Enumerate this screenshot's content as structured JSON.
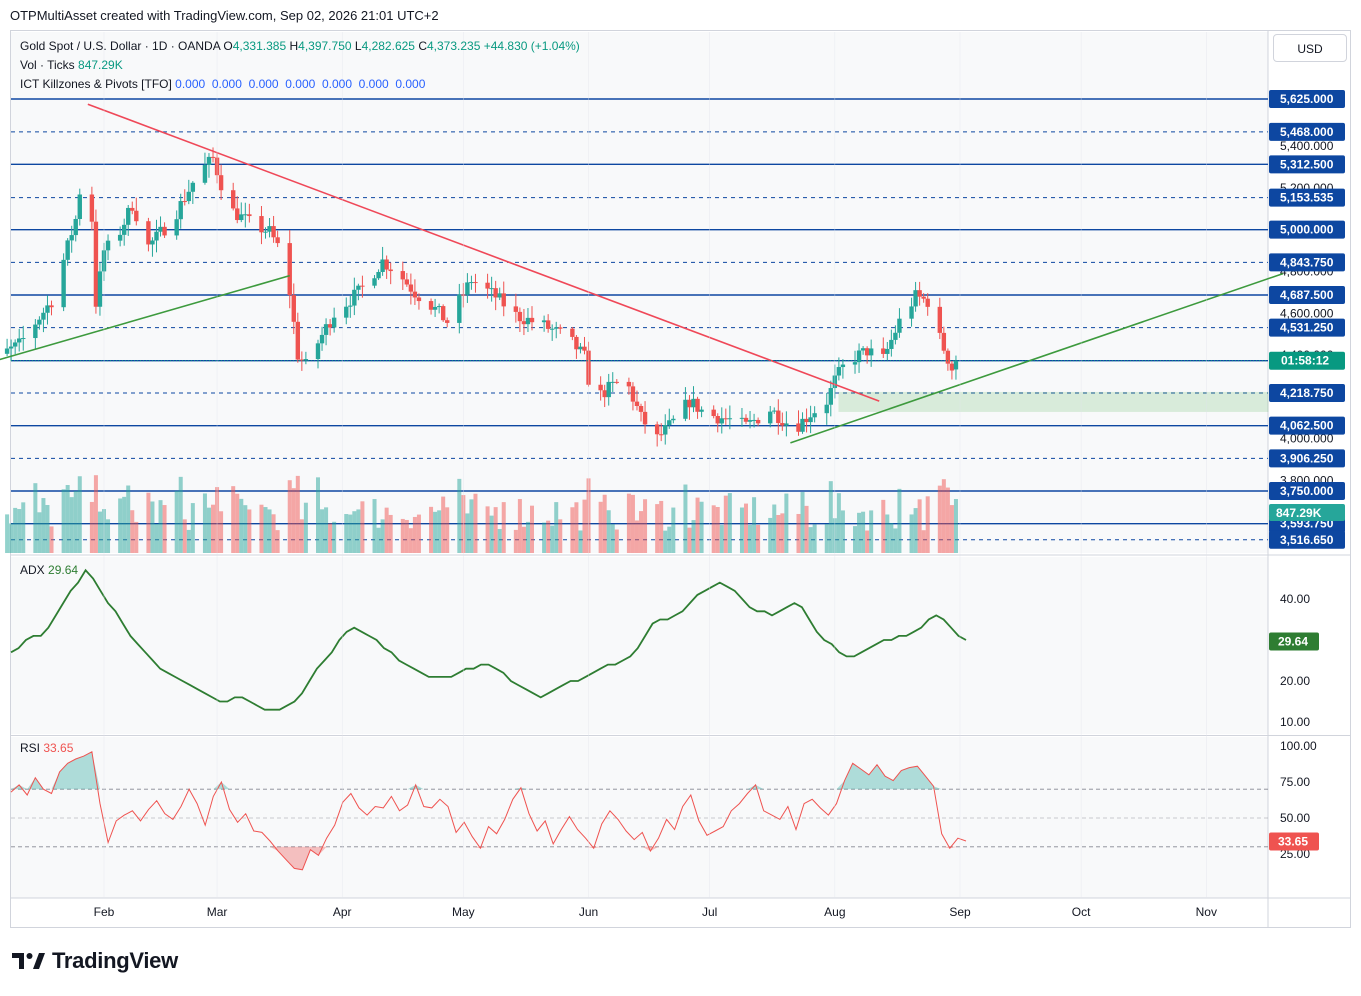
{
  "watermark": {
    "text": "OTPMultiAsset created with TradingView.com, Sep 02, 2026 21:01 UTC+2"
  },
  "currency_button": "USD",
  "legend": {
    "symbol": "Gold Spot / U.S. Dollar · 1D · OANDA",
    "o_label": "O",
    "o": "4,331.385",
    "h_label": "H",
    "h": "4,397.750",
    "l_label": "L",
    "l": "4,282.625",
    "c_label": "C",
    "c": "4,373.235",
    "change": "+44.830 (+1.04%)",
    "vol_label": "Vol · Ticks",
    "vol": "847.29K",
    "ict_label": "ICT Killzones & Pivots [TFO]",
    "ict_values": "0.000  0.000  0.000  0.000  0.000  0.000  0.000"
  },
  "adx_label": "ADX",
  "adx_value": "29.64",
  "rsi_label": "RSI",
  "rsi_value": "33.65",
  "countdown": "01:58:12",
  "volume_badge": "847.29K",
  "brand": "TradingView",
  "colors": {
    "up": "#26a69a",
    "down": "#ef5350",
    "level": "#0d47a1",
    "adx": "#2e7d32",
    "rsi": "#ef5350",
    "trend_down": "#ef4858",
    "trend_up": "#3d9a3d"
  },
  "chart_data": [
    {
      "type": "candlestick",
      "title": "Gold Spot / U.S. Dollar · 1D · OANDA",
      "ylim": [
        3440,
        5760
      ],
      "y_ticks": [
        "5,400.000",
        "5,200.000",
        "4,800.000",
        "4,600.000",
        "4,400.000",
        "4,000.000",
        "3,800.000"
      ],
      "x_ticks": [
        "Feb",
        "Mar",
        "Apr",
        "May",
        "Jun",
        "Jul",
        "Aug",
        "Sep",
        "Oct",
        "Nov"
      ],
      "levels": [
        {
          "price": 5625.0,
          "label": "5,625.000",
          "style": "solid"
        },
        {
          "price": 5468.0,
          "label": "5,468.000",
          "style": "dashed"
        },
        {
          "price": 5312.5,
          "label": "5,312.500",
          "style": "solid"
        },
        {
          "price": 5153.535,
          "label": "5,153.535",
          "style": "dashed"
        },
        {
          "price": 5000.0,
          "label": "5,000.000",
          "style": "solid"
        },
        {
          "price": 4843.75,
          "label": "4,843.750",
          "style": "dashed"
        },
        {
          "price": 4687.5,
          "label": "4,687.500",
          "style": "solid"
        },
        {
          "price": 4531.25,
          "label": "4,531.250",
          "style": "dashed"
        },
        {
          "price": 4373.235,
          "label": "",
          "style": "solid"
        },
        {
          "price": 4218.75,
          "label": "4,218.750",
          "style": "dashed"
        },
        {
          "price": 4062.5,
          "label": "4,062.500",
          "style": "solid"
        },
        {
          "price": 3906.25,
          "label": "3,906.250",
          "style": "dashed"
        },
        {
          "price": 3750.0,
          "label": "3,750.000",
          "style": "solid"
        },
        {
          "price": 3593.75,
          "label": "3,593.750",
          "style": "solid"
        },
        {
          "price": 3516.65,
          "label": "3,516.650",
          "style": "dashed"
        }
      ],
      "last_price": 4373.235,
      "candles": [],
      "trendlines": [
        {
          "from": [
            "Jan 28",
            5600
          ],
          "to": [
            "Aug 12",
            4180
          ],
          "color": "down"
        },
        {
          "from": [
            "Jan 1",
            4350
          ],
          "to": [
            "Mar 19",
            4780
          ],
          "color": "up"
        },
        {
          "from": [
            "Jul 21",
            3980
          ],
          "to": [
            "Nov 20",
            4790
          ],
          "color": "up"
        }
      ],
      "zone": {
        "from": "Aug 2",
        "price_top": 4222,
        "price_bottom": 4130
      }
    },
    {
      "type": "line",
      "title": "ADX",
      "ylim": [
        8,
        50
      ],
      "y_ticks": [
        "40.00",
        "20.00",
        "10.00"
      ],
      "series": [
        {
          "name": "ADX",
          "values": [
            27,
            28,
            30,
            31,
            31,
            33,
            36,
            39,
            42,
            44,
            47,
            45,
            42,
            39,
            37,
            34,
            31,
            29,
            27,
            25,
            23,
            22,
            21,
            20,
            19,
            18,
            17,
            16,
            15,
            15,
            16,
            16,
            15,
            14,
            13,
            13,
            13,
            14,
            15,
            17,
            20,
            23,
            25,
            27,
            30,
            32,
            33,
            32,
            31,
            30,
            28,
            27,
            25,
            24,
            23,
            22,
            21,
            21,
            21,
            21,
            22,
            23,
            23,
            24,
            24,
            23,
            22,
            20,
            19,
            18,
            17,
            16,
            17,
            18,
            19,
            20,
            20,
            21,
            22,
            23,
            24,
            24,
            25,
            26,
            28,
            31,
            34,
            35,
            35,
            36,
            37,
            39,
            41,
            42,
            43,
            44,
            43,
            42,
            40,
            38,
            37,
            37,
            36,
            37,
            38,
            39,
            38,
            35,
            32,
            30,
            29,
            27,
            26,
            26,
            27,
            28,
            29,
            30,
            30,
            31,
            31,
            32,
            33,
            35,
            36,
            35,
            33,
            31,
            30
          ]
        }
      ]
    },
    {
      "type": "line",
      "title": "RSI",
      "ylim": [
        5,
        100
      ],
      "y_ticks": [
        "100.00",
        "75.00",
        "50.00",
        "25.00"
      ],
      "levels": [
        70,
        50,
        30
      ],
      "series": [
        {
          "name": "RSI",
          "values": [
            68,
            73,
            66,
            78,
            70,
            67,
            82,
            88,
            91,
            93,
            96,
            60,
            33,
            48,
            52,
            55,
            48,
            56,
            62,
            53,
            49,
            58,
            70,
            60,
            45,
            65,
            75,
            56,
            47,
            53,
            41,
            40,
            34,
            27,
            21,
            15,
            14,
            28,
            24,
            36,
            45,
            61,
            67,
            57,
            52,
            58,
            57,
            65,
            55,
            59,
            73,
            58,
            57,
            63,
            58,
            40,
            47,
            37,
            29,
            44,
            39,
            49,
            63,
            71,
            53,
            41,
            48,
            32,
            42,
            51,
            42,
            36,
            29,
            46,
            55,
            49,
            41,
            35,
            40,
            27,
            36,
            49,
            42,
            58,
            66,
            48,
            38,
            41,
            44,
            55,
            60,
            67,
            73,
            55,
            52,
            49,
            58,
            42,
            60,
            63,
            57,
            52,
            60,
            76,
            88,
            84,
            80,
            87,
            79,
            76,
            83,
            85,
            86,
            79,
            72,
            39,
            29,
            36,
            34
          ]
        }
      ]
    }
  ]
}
